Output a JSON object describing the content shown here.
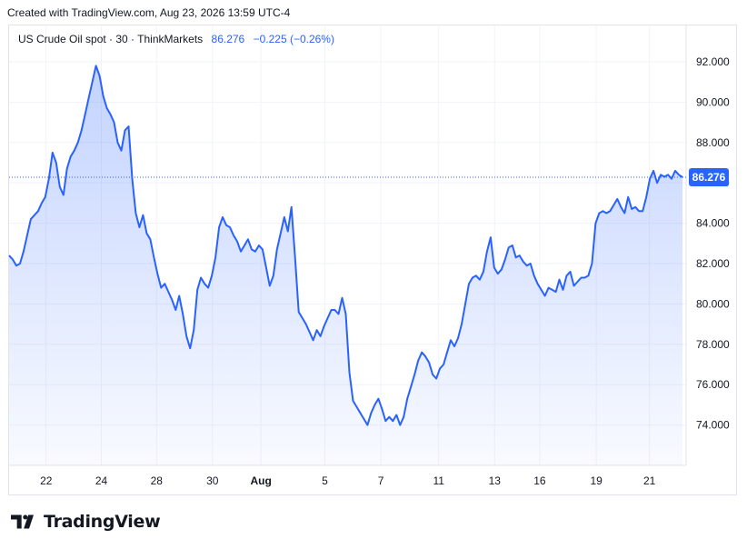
{
  "header": {
    "created_text": "Created with TradingView.com, Aug 23, 2026 13:59 UTC-4"
  },
  "legend": {
    "symbol": "US Crude Oil spot · 30 · ThinkMarkets",
    "price": "86.276",
    "change": "−0.225 (−0.26%)"
  },
  "footer": {
    "brand": "TradingView"
  },
  "colors": {
    "line": "#2962ff",
    "fill_top": "#2962ff",
    "grid": "#f0f3fa",
    "axis_text": "#131722",
    "price_tag_bg": "#2962ff"
  },
  "chart_data": {
    "type": "area",
    "title": "US Crude Oil spot · 30 · ThinkMarkets",
    "x_tick_labels": [
      "22",
      "24",
      "28",
      "30",
      "Aug",
      "5",
      "7",
      "11",
      "13",
      "16",
      "19",
      "21"
    ],
    "y_tick_labels": [
      "74.000",
      "76.000",
      "78.000",
      "80.000",
      "82.000",
      "84.000",
      "86.000",
      "88.000",
      "90.000",
      "92.000"
    ],
    "ylim": [
      72.0,
      93.8
    ],
    "last_price": 86.276,
    "last_price_label": "86.276",
    "grid": true,
    "values": [
      82.4,
      82.2,
      81.9,
      82.0,
      82.6,
      83.4,
      84.2,
      84.4,
      84.6,
      85.0,
      85.3,
      86.2,
      87.5,
      87.0,
      85.8,
      85.4,
      86.7,
      87.3,
      87.6,
      88.0,
      88.6,
      89.4,
      90.2,
      91.0,
      91.8,
      91.3,
      90.3,
      89.7,
      89.4,
      89.0,
      88.0,
      87.6,
      88.6,
      88.8,
      86.2,
      84.5,
      83.8,
      84.4,
      83.5,
      83.2,
      82.3,
      81.5,
      80.8,
      81.0,
      80.6,
      80.2,
      79.7,
      80.4,
      79.5,
      78.4,
      77.8,
      78.7,
      80.7,
      81.3,
      81.0,
      80.8,
      81.4,
      82.3,
      83.8,
      84.3,
      83.9,
      83.8,
      83.4,
      83.1,
      82.6,
      82.9,
      83.2,
      82.7,
      82.6,
      82.9,
      82.7,
      81.8,
      80.9,
      81.4,
      82.7,
      83.5,
      84.3,
      83.6,
      84.8,
      82.3,
      79.6,
      79.3,
      79.0,
      78.6,
      78.2,
      78.7,
      78.4,
      78.9,
      79.3,
      79.7,
      79.7,
      79.5,
      80.3,
      79.5,
      76.6,
      75.2,
      74.9,
      74.6,
      74.3,
      74.0,
      74.6,
      75.0,
      75.3,
      74.8,
      74.2,
      74.4,
      74.2,
      74.5,
      74.0,
      74.4,
      75.3,
      75.9,
      76.5,
      77.2,
      77.6,
      77.4,
      77.1,
      76.5,
      76.3,
      76.8,
      77.0,
      77.6,
      78.2,
      77.9,
      78.3,
      79.0,
      80.0,
      81.0,
      81.3,
      81.4,
      81.2,
      81.6,
      82.6,
      83.3,
      81.8,
      81.5,
      81.7,
      82.2,
      82.8,
      82.9,
      82.3,
      82.4,
      82.1,
      81.9,
      82.0,
      81.4,
      81.0,
      80.7,
      80.4,
      80.8,
      80.7,
      80.6,
      81.2,
      80.7,
      81.4,
      81.6,
      80.9,
      81.1,
      81.3,
      81.3,
      81.4,
      82.0,
      84.0,
      84.5,
      84.6,
      84.5,
      84.6,
      84.9,
      85.2,
      84.8,
      84.5,
      85.3,
      84.7,
      84.8,
      84.6,
      84.6,
      85.3,
      86.2,
      86.6,
      86.0,
      86.4,
      86.3,
      86.4,
      86.2,
      86.6,
      86.4,
      86.276
    ]
  }
}
